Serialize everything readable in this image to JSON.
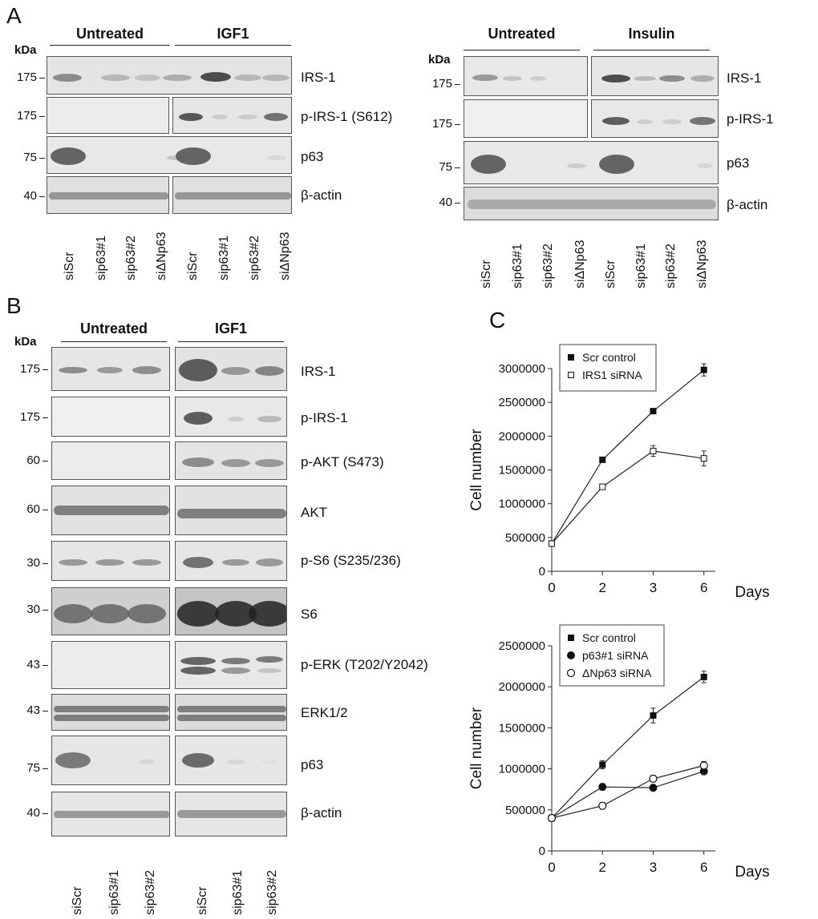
{
  "panel_letters": [
    "A",
    "B",
    "C"
  ],
  "kda_label": "kDa",
  "panelA_left": {
    "groups": [
      "Untreated",
      "IGF1"
    ],
    "rows": [
      {
        "mw": "175",
        "protein": "IRS-1"
      },
      {
        "mw": "175",
        "protein": "p-IRS-1 (S612)"
      },
      {
        "mw": "75",
        "protein": "p63"
      },
      {
        "mw": "40",
        "protein": "β-actin"
      }
    ],
    "lanes": [
      "siScr",
      "sip63#1",
      "sip63#2",
      "siΔNp63",
      "siScr",
      "sip63#1",
      "sip63#2",
      "siΔNp63"
    ]
  },
  "panelA_right": {
    "groups": [
      "Untreated",
      "Insulin"
    ],
    "rows": [
      {
        "mw": "175",
        "protein": "IRS-1"
      },
      {
        "mw": "175",
        "protein": "p-IRS-1"
      },
      {
        "mw": "75",
        "protein": "p63"
      },
      {
        "mw": "40",
        "protein": "β-actin"
      }
    ],
    "lanes": [
      "siScr",
      "sip63#1",
      "sip63#2",
      "siΔNp63",
      "siScr",
      "sip63#1",
      "sip63#2",
      "siΔNp63"
    ]
  },
  "panelB": {
    "groups": [
      "Untreated",
      "IGF1"
    ],
    "rows": [
      {
        "mw": "175",
        "protein": "IRS-1"
      },
      {
        "mw": "175",
        "protein": "p-IRS-1"
      },
      {
        "mw": "60",
        "protein": "p-AKT (S473)"
      },
      {
        "mw": "60",
        "protein": "AKT"
      },
      {
        "mw": "30",
        "protein": "p-S6 (S235/236)"
      },
      {
        "mw": "30",
        "protein": "S6"
      },
      {
        "mw": "43",
        "protein": "p-ERK (T202/Y2042)"
      },
      {
        "mw": "43",
        "protein": "ERK1/2"
      },
      {
        "mw": "75",
        "protein": "p63"
      },
      {
        "mw": "40",
        "protein": "β-actin"
      }
    ],
    "lanes": [
      "siScr",
      "sip63#1",
      "sip63#2",
      "siScr",
      "sip63#1",
      "sip63#2"
    ]
  },
  "chart_data": [
    {
      "type": "line",
      "title": "",
      "xlabel": "Days",
      "ylabel": "Cell number",
      "categories": [
        "0",
        "2",
        "3",
        "6"
      ],
      "ylim": [
        0,
        3000000
      ],
      "yticks": [
        "0",
        "500000",
        "1000000",
        "1500000",
        "2000000",
        "2500000",
        "3000000"
      ],
      "legend_placement": "top-left",
      "series": [
        {
          "name": "Scr control",
          "marker": "filled-square",
          "values": [
            410000,
            1650000,
            2370000,
            2980000
          ],
          "errors": [
            20000,
            30000,
            30000,
            90000
          ]
        },
        {
          "name": "IRS1 siRNA",
          "marker": "open-square",
          "values": [
            410000,
            1250000,
            1780000,
            1670000
          ],
          "errors": [
            20000,
            30000,
            80000,
            110000
          ]
        }
      ]
    },
    {
      "type": "line",
      "title": "",
      "xlabel": "Days",
      "ylabel": "Cell number",
      "categories": [
        "0",
        "2",
        "3",
        "6"
      ],
      "ylim": [
        0,
        2500000
      ],
      "yticks": [
        "0",
        "500000",
        "1000000",
        "1500000",
        "2000000",
        "2500000"
      ],
      "legend_placement": "top-left",
      "series": [
        {
          "name": "Scr control",
          "marker": "filled-square",
          "values": [
            400000,
            1050000,
            1650000,
            2120000
          ],
          "errors": [
            40000,
            50000,
            90000,
            70000
          ]
        },
        {
          "name": "p63#1 siRNA",
          "marker": "filled-circle",
          "values": [
            400000,
            780000,
            770000,
            970000
          ],
          "errors": [
            30000,
            40000,
            30000,
            30000
          ]
        },
        {
          "name": "ΔNp63 siRNA",
          "marker": "open-circle",
          "values": [
            400000,
            550000,
            880000,
            1040000
          ],
          "errors": [
            30000,
            40000,
            40000,
            50000
          ]
        }
      ]
    }
  ]
}
